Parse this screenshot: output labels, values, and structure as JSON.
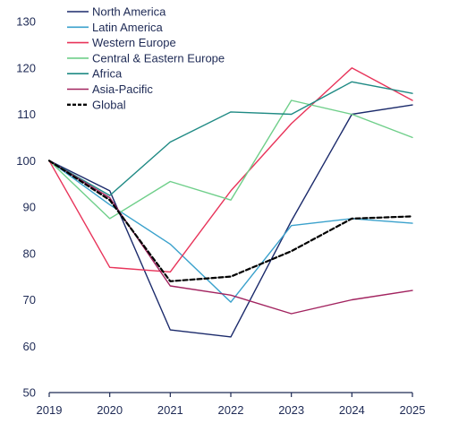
{
  "chart_data": {
    "type": "line",
    "title": "",
    "xlabel": "",
    "ylabel": "",
    "x": [
      "2019",
      "2020",
      "2021",
      "2022",
      "2023",
      "2024",
      "2025"
    ],
    "ylim": [
      50,
      130
    ],
    "yticks": [
      50,
      60,
      70,
      80,
      90,
      100,
      110,
      120,
      130
    ],
    "grid": false,
    "legend_position": "top-left",
    "series": [
      {
        "name": "North America",
        "color": "#1b2a6b",
        "dash": false,
        "values": [
          100,
          93.5,
          63.5,
          62,
          87,
          110,
          112
        ]
      },
      {
        "name": "Latin America",
        "color": "#3aa1cc",
        "dash": false,
        "values": [
          100,
          90.5,
          82,
          69.5,
          86,
          87.5,
          86.5
        ]
      },
      {
        "name": "Western Europe",
        "color": "#e8345a",
        "dash": false,
        "values": [
          100,
          77,
          76,
          93.5,
          108,
          120,
          113
        ]
      },
      {
        "name": "Central & Eastern Europe",
        "color": "#6fcf8a",
        "dash": false,
        "values": [
          100,
          87.5,
          95.5,
          91.5,
          113,
          110,
          105
        ]
      },
      {
        "name": "Africa",
        "color": "#1f8a84",
        "dash": false,
        "values": [
          100,
          92.5,
          104,
          110.5,
          110,
          117,
          114.5
        ]
      },
      {
        "name": "Asia-Pacific",
        "color": "#a2235f",
        "dash": false,
        "values": [
          100,
          92,
          73,
          71,
          67,
          70,
          72
        ]
      },
      {
        "name": "Global",
        "color": "#000000",
        "dash": true,
        "values": [
          100,
          91.5,
          74,
          75,
          80.5,
          87.5,
          88
        ]
      }
    ]
  }
}
